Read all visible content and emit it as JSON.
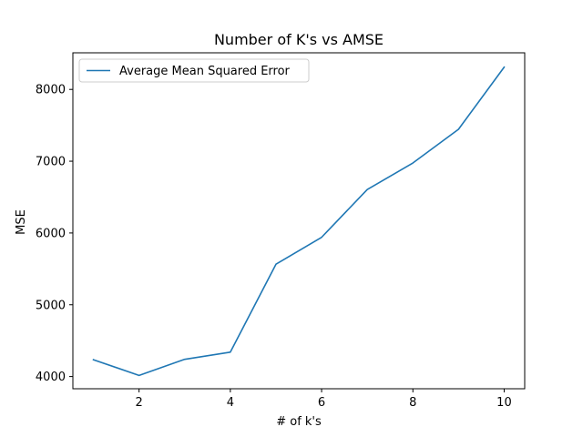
{
  "chart_data": {
    "type": "line",
    "title": "Number of K's vs AMSE",
    "xlabel": "# of k's",
    "ylabel": "MSE",
    "xlim": [
      0.55,
      10.45
    ],
    "ylim": [
      3830,
      8510
    ],
    "xticks": [
      2,
      4,
      6,
      8,
      10
    ],
    "yticks": [
      4000,
      5000,
      6000,
      7000,
      8000
    ],
    "grid": false,
    "legend_position": "top-left",
    "series": [
      {
        "name": "Average Mean Squared Error",
        "color": "#1f77b4",
        "x": [
          1,
          2,
          3,
          4,
          5,
          6,
          7,
          8,
          9,
          10
        ],
        "y": [
          4235,
          4015,
          4240,
          4340,
          5565,
          5940,
          6605,
          6975,
          7445,
          8310
        ]
      }
    ]
  }
}
